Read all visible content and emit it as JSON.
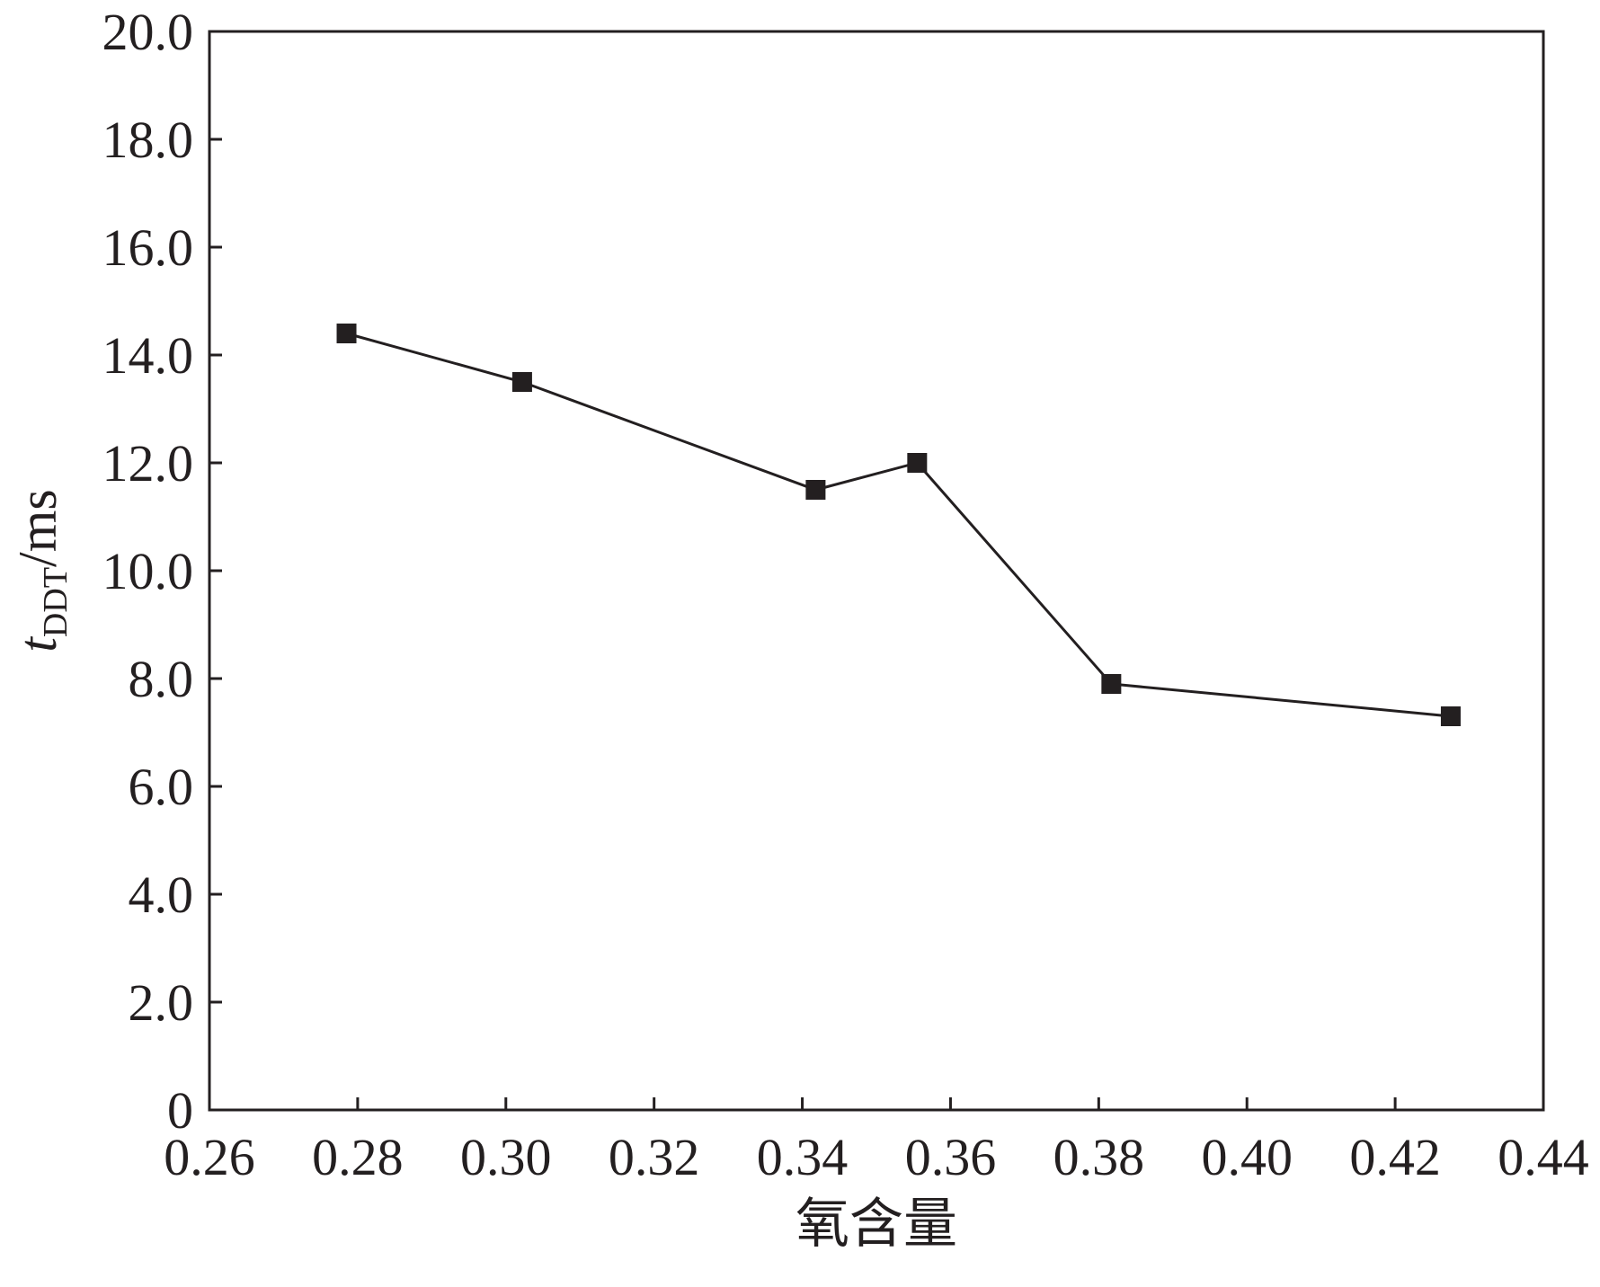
{
  "chart_data": {
    "type": "line",
    "xlabel": "氧含量",
    "ylabel": {
      "var": "t",
      "sub": "DDT",
      "unit": "/ms"
    },
    "xlim": [
      0.26,
      0.44
    ],
    "ylim": [
      0,
      20
    ],
    "x_ticks": [
      0.26,
      0.28,
      0.3,
      0.32,
      0.34,
      0.36,
      0.38,
      0.4,
      0.42,
      0.44
    ],
    "x_tick_labels": [
      "0.26",
      "0.28",
      "0.30",
      "0.32",
      "0.34",
      "0.36",
      "0.38",
      "0.40",
      "0.42",
      "0.44"
    ],
    "y_ticks": [
      0,
      2,
      4,
      6,
      8,
      10,
      12,
      14,
      16,
      18,
      20
    ],
    "y_tick_labels": [
      "0",
      "2.0",
      "4.0",
      "6.0",
      "8.0",
      "10.0",
      "12.0",
      "14.0",
      "16.0",
      "18.0",
      "20.0"
    ],
    "grid": false,
    "legend": "none",
    "marker": "square",
    "series": [
      {
        "x": [
          0.2785,
          0.3022,
          0.3418,
          0.3555,
          0.3817,
          0.4275
        ],
        "y": [
          14.4,
          13.5,
          11.5,
          12.0,
          7.9,
          7.3
        ]
      }
    ]
  }
}
